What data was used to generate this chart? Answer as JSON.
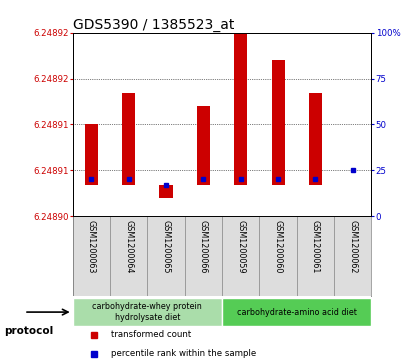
{
  "title": "GDS5390 / 1385523_at",
  "samples": [
    "GSM1200063",
    "GSM1200064",
    "GSM1200065",
    "GSM1200066",
    "GSM1200059",
    "GSM1200060",
    "GSM1200061",
    "GSM1200062"
  ],
  "ylim_left": [
    6.248905,
    6.24892
  ],
  "ylim_right": [
    0,
    100
  ],
  "yticks_right": [
    0,
    25,
    50,
    75,
    100
  ],
  "ytick_labels_right": [
    "0",
    "25",
    "50",
    "75",
    "100%"
  ],
  "bar_top_pct": [
    50,
    67,
    17,
    60,
    100,
    85,
    67,
    17
  ],
  "bar_bottom_pct": [
    17,
    17,
    10,
    17,
    17,
    17,
    17,
    17
  ],
  "percentile_values": [
    20,
    20,
    17,
    20,
    20,
    20,
    20,
    25
  ],
  "bar_color": "#cc0000",
  "percentile_color": "#0000cc",
  "protocol_groups": [
    {
      "label": "carbohydrate-whey protein\nhydrolysate diet",
      "start": 0,
      "end": 4,
      "color": "#aaddaa"
    },
    {
      "label": "carbohydrate-amino acid diet",
      "start": 4,
      "end": 8,
      "color": "#55cc55"
    }
  ],
  "protocol_label": "protocol",
  "legend_items": [
    {
      "label": "transformed count",
      "color": "#cc0000"
    },
    {
      "label": "percentile rank within the sample",
      "color": "#0000cc"
    }
  ],
  "title_fontsize": 10,
  "left_tick_color": "#cc0000",
  "right_tick_color": "#0000cc",
  "background_color": "#ffffff",
  "plot_bg_color": "#ffffff",
  "grid_color": "#000000"
}
